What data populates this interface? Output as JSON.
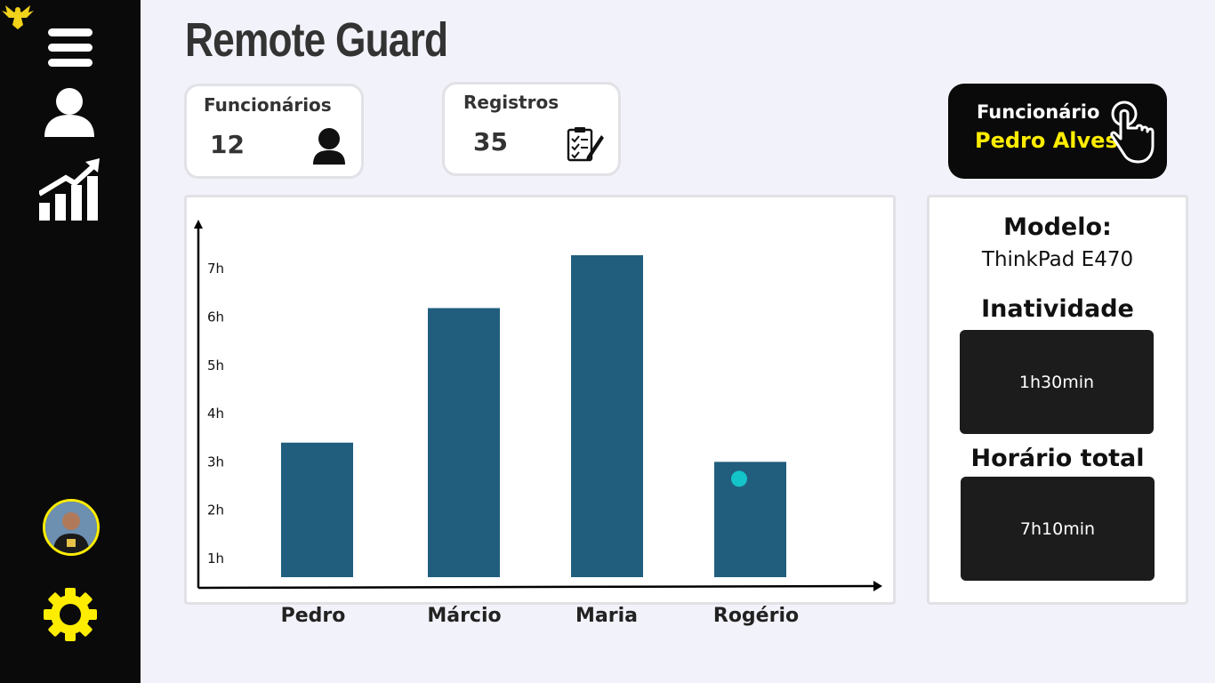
{
  "app": {
    "title": "Remote Guard"
  },
  "sidebar": {
    "items": [
      {
        "icon": "menu-icon"
      },
      {
        "icon": "user-icon"
      },
      {
        "icon": "chart-growth-icon"
      }
    ],
    "avatar": "avatar",
    "settings_icon": "gear-icon",
    "logo_icon": "eagle-logo-icon"
  },
  "stats": {
    "employees": {
      "label": "Funcionários",
      "value": "12",
      "icon": "person-icon"
    },
    "records": {
      "label": "Registros",
      "value": "35",
      "icon": "clipboard-icon"
    }
  },
  "employee_selector": {
    "label": "Funcionário",
    "name": "Pedro Alves",
    "icon": "pointer-hand-icon"
  },
  "chart_data": {
    "type": "bar",
    "categories": [
      "Pedro",
      "Márcio",
      "Maria",
      "Rogério"
    ],
    "values": [
      2.8,
      5.6,
      6.7,
      2.4
    ],
    "y_ticks": [
      "1h",
      "2h",
      "3h",
      "4h",
      "5h",
      "6h",
      "7h"
    ],
    "ylim": [
      0,
      7.5
    ],
    "bar_color": "#215e7e",
    "marker_color": "#13c4c8"
  },
  "details": {
    "model_label": "Modelo:",
    "model_value": "ThinkPad E470",
    "inactivity_label": "Inatividade",
    "inactivity_value": "1h30min",
    "total_label": "Horário total",
    "total_value": "7h10min"
  },
  "colors": {
    "accent": "#ffed00",
    "sidebar": "#0a0a0a",
    "background": "#f2f2fb"
  }
}
